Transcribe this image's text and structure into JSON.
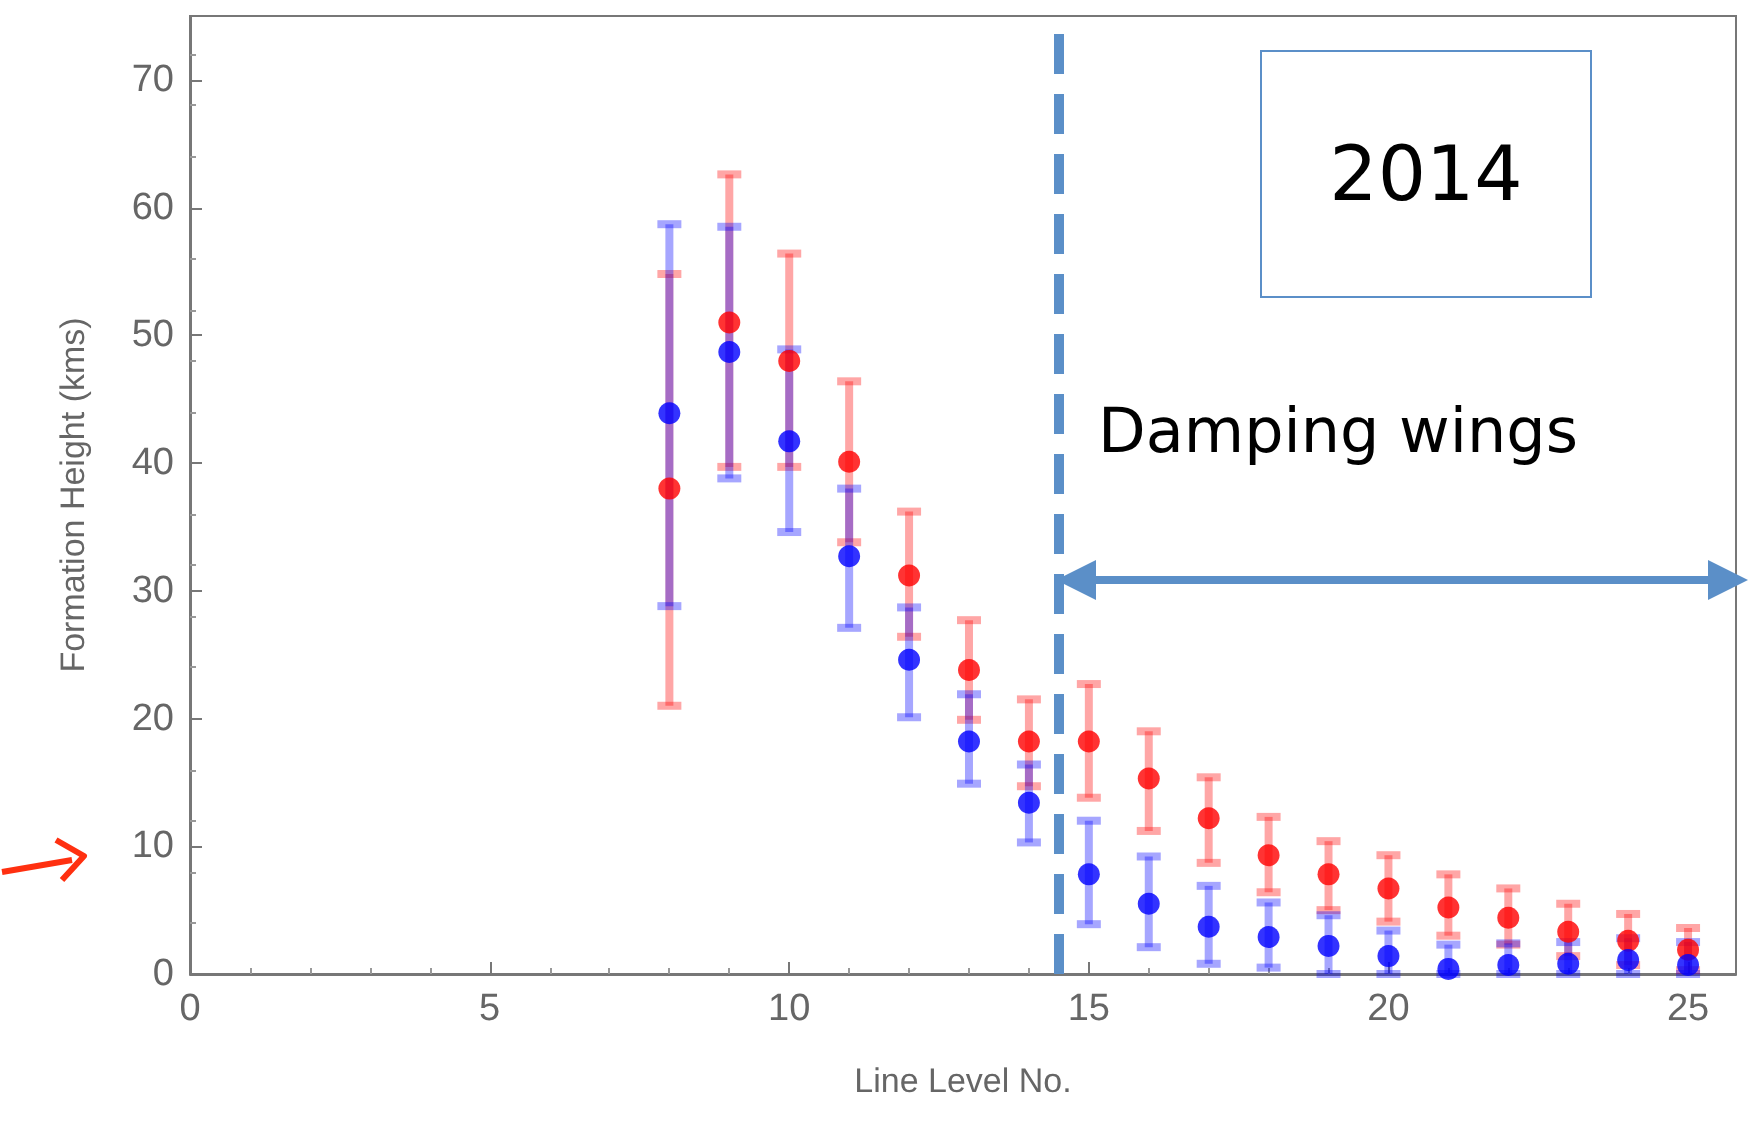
{
  "chart_data": {
    "type": "scatter",
    "xlabel": "Line Level No.",
    "ylabel": "Formation Height (kms)",
    "annotations": [
      "2014",
      "Damping wings"
    ],
    "x": [
      8,
      9,
      10,
      11,
      12,
      13,
      14,
      15,
      16,
      17,
      18,
      19,
      20,
      21,
      22,
      23,
      24,
      25
    ],
    "series": [
      {
        "color": "#ff0000",
        "values": [
          38.0,
          51.0,
          48.0,
          40.1,
          31.2,
          23.8,
          18.2,
          18.2,
          15.3,
          12.2,
          9.3,
          7.8,
          6.7,
          5.2,
          4.4,
          3.3,
          2.6,
          1.9
        ],
        "errors": [
          [
            21.0,
            54.8
          ],
          [
            39.7,
            62.6
          ],
          [
            39.7,
            56.4
          ],
          [
            33.8,
            46.4
          ],
          [
            26.4,
            36.2
          ],
          [
            19.9,
            27.7
          ],
          [
            14.7,
            21.5
          ],
          [
            13.8,
            22.7
          ],
          [
            11.2,
            19.0
          ],
          [
            8.7,
            15.4
          ],
          [
            6.4,
            12.3
          ],
          [
            5.0,
            10.4
          ],
          [
            4.1,
            9.3
          ],
          [
            3.0,
            7.8
          ],
          [
            2.3,
            6.7
          ],
          [
            1.4,
            5.5
          ],
          [
            0.7,
            4.7
          ],
          [
            0.3,
            3.6
          ]
        ]
      },
      {
        "color": "#0000ff",
        "values": [
          43.9,
          48.7,
          41.7,
          32.7,
          24.6,
          18.2,
          13.4,
          7.8,
          5.5,
          3.7,
          2.9,
          2.2,
          1.4,
          0.4,
          0.7,
          0.8,
          1.1,
          0.7
        ],
        "errors": [
          [
            28.8,
            58.7
          ],
          [
            38.8,
            58.5
          ],
          [
            34.6,
            48.9
          ],
          [
            27.1,
            38.0
          ],
          [
            20.1,
            28.7
          ],
          [
            14.9,
            21.9
          ],
          [
            10.3,
            16.4
          ],
          [
            3.9,
            12.0
          ],
          [
            2.1,
            9.2
          ],
          [
            0.8,
            6.9
          ],
          [
            0.5,
            5.6
          ],
          [
            0,
            4.6
          ],
          [
            0,
            3.4
          ],
          [
            0,
            2.3
          ],
          [
            0,
            2.4
          ],
          [
            0,
            2.5
          ],
          [
            0,
            2.8
          ],
          [
            0,
            2.5
          ]
        ]
      }
    ],
    "ref_lines": [
      {
        "axis": "x",
        "value": 14.5,
        "color": "#5b8fc8",
        "line_style": "dashed"
      }
    ],
    "xlim": [
      0,
      25.8
    ],
    "ylim": [
      0,
      75
    ],
    "xticks": [
      0,
      5,
      10,
      15,
      20,
      25
    ],
    "yticks": [
      0,
      10,
      20,
      30,
      40,
      50,
      60,
      70
    ],
    "grid": false,
    "marker": "circle"
  }
}
